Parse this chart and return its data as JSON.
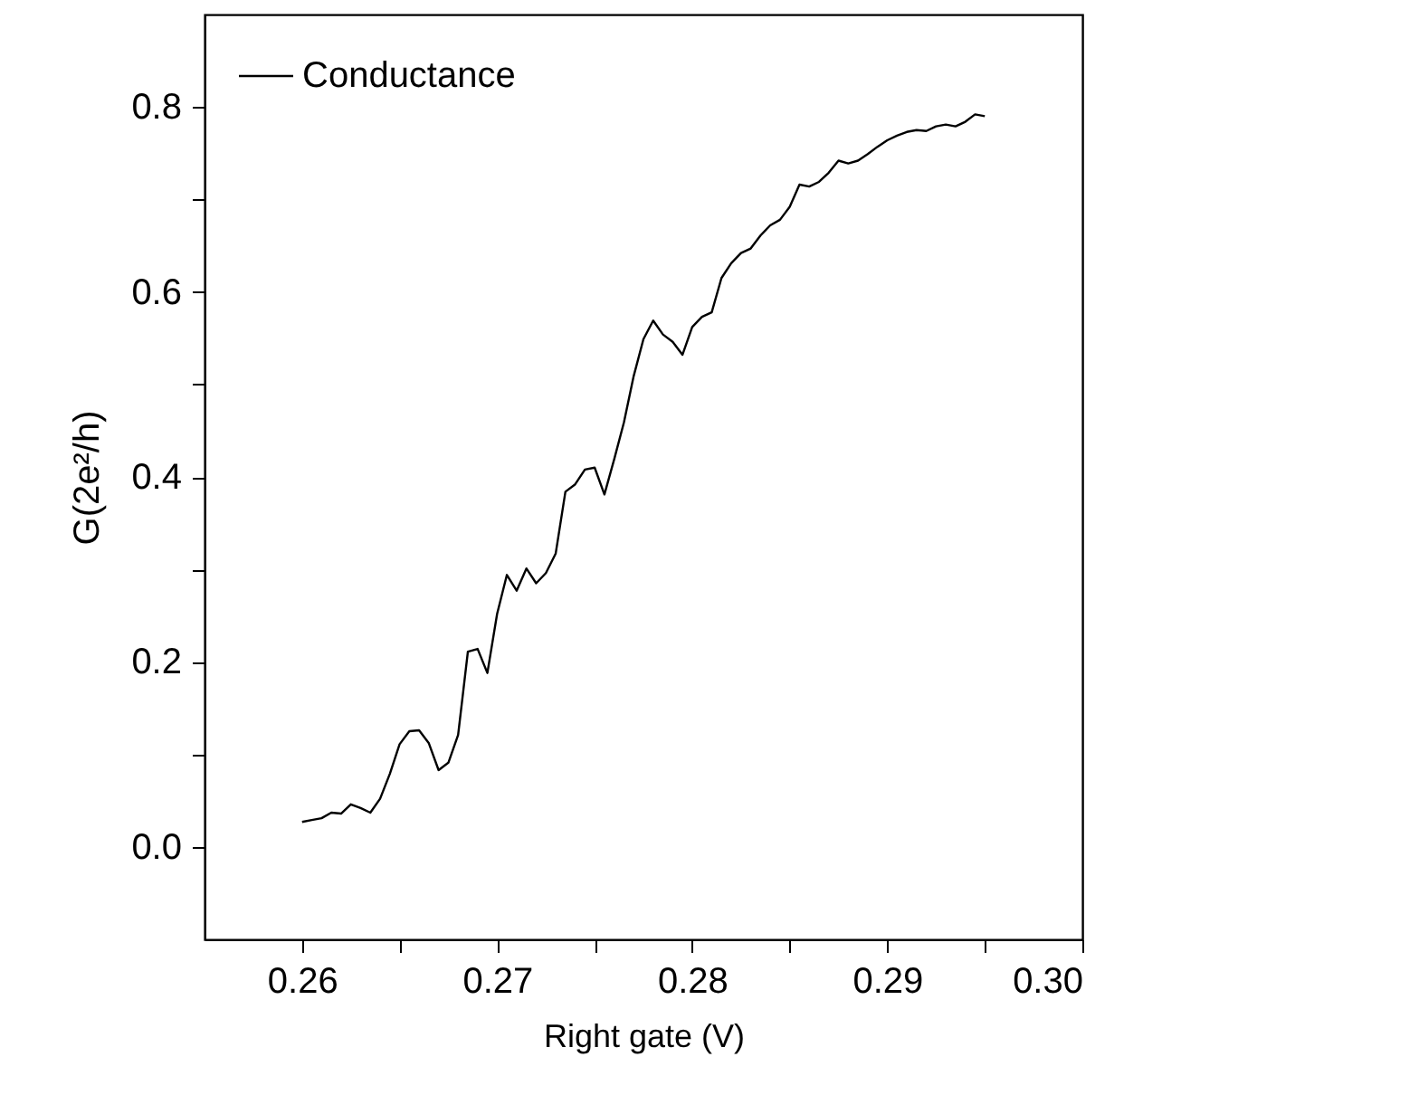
{
  "chart_data": {
    "type": "line",
    "xlabel": "Right gate (V)",
    "ylabel": "G(2e²/h)",
    "x": [
      0.26,
      0.2605,
      0.261,
      0.2615,
      0.262,
      0.2625,
      0.263,
      0.2635,
      0.264,
      0.2645,
      0.265,
      0.2655,
      0.266,
      0.2665,
      0.267,
      0.2675,
      0.268,
      0.2685,
      0.269,
      0.2695,
      0.27,
      0.2705,
      0.271,
      0.2715,
      0.272,
      0.2725,
      0.273,
      0.2735,
      0.274,
      0.2745,
      0.275,
      0.2755,
      0.276,
      0.2765,
      0.277,
      0.2775,
      0.278,
      0.2785,
      0.279,
      0.2795,
      0.28,
      0.2805,
      0.281,
      0.2815,
      0.282,
      0.2825,
      0.283,
      0.2835,
      0.284,
      0.2845,
      0.285,
      0.2855,
      0.286,
      0.2865,
      0.287,
      0.2875,
      0.288,
      0.2885,
      0.289,
      0.2895,
      0.29,
      0.2905,
      0.291,
      0.2915,
      0.292,
      0.2925,
      0.293,
      0.2935,
      0.294,
      0.2945,
      0.295
    ],
    "series": [
      {
        "name": "Conductance",
        "color": "#000000",
        "values": [
          0.027,
          0.029,
          0.031,
          0.037,
          0.036,
          0.046,
          0.042,
          0.037,
          0.052,
          0.079,
          0.111,
          0.125,
          0.126,
          0.112,
          0.083,
          0.091,
          0.121,
          0.211,
          0.214,
          0.188,
          0.252,
          0.294,
          0.277,
          0.301,
          0.285,
          0.296,
          0.317,
          0.384,
          0.392,
          0.408,
          0.41,
          0.381,
          0.419,
          0.459,
          0.509,
          0.549,
          0.569,
          0.554,
          0.546,
          0.532,
          0.562,
          0.573,
          0.578,
          0.615,
          0.631,
          0.642,
          0.647,
          0.661,
          0.672,
          0.678,
          0.692,
          0.716,
          0.714,
          0.719,
          0.729,
          0.742,
          0.739,
          0.742,
          0.749,
          0.757,
          0.764,
          0.769,
          0.773,
          0.775,
          0.774,
          0.779,
          0.781,
          0.779,
          0.784,
          0.792,
          0.79
        ]
      }
    ],
    "xlim": [
      0.255,
      0.3
    ],
    "ylim": [
      -0.1,
      0.9
    ],
    "xticks": [
      0.26,
      {
        "value": 0.265,
        "label": null
      },
      0.27,
      {
        "value": 0.275,
        "label": null
      },
      0.28,
      {
        "value": 0.285,
        "label": null
      },
      0.29,
      {
        "value": 0.295,
        "label": null
      },
      {
        "value": 0.3,
        "label": "0.30"
      }
    ],
    "yticks": [
      {
        "value": 0.0,
        "label": "0.0"
      },
      {
        "value": 0.1,
        "label": null
      },
      0.2,
      {
        "value": 0.3,
        "label": null
      },
      0.4,
      {
        "value": 0.5,
        "label": null
      },
      0.6,
      {
        "value": 0.7,
        "label": null
      },
      0.8
    ],
    "legend": "top left",
    "marker": "none",
    "line_style": "solid",
    "grid": false
  }
}
